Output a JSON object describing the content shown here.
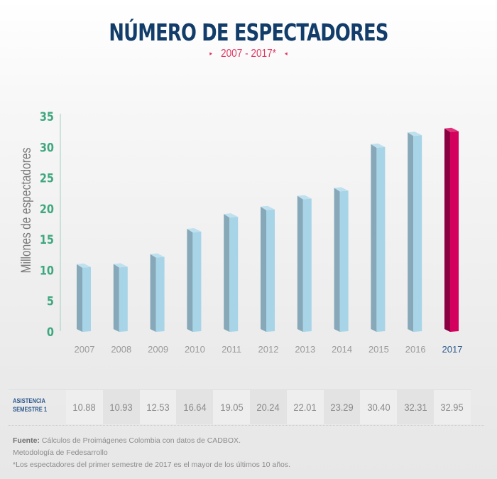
{
  "header": {
    "title": "NÚMERO DE ESPECTADORES",
    "subtitle": "2007 - 2017*",
    "subtitle_left_marker": "▸",
    "subtitle_right_marker": "◂"
  },
  "colors": {
    "title": "#123d6a",
    "subtitle": "#e03764",
    "axis_ticks": "#3fa77e",
    "bar_front": "#a7d4e7",
    "bar_side": "#86a8b8",
    "bar_top": "#bfe0ee",
    "highlight_front": "#d4005d",
    "highlight_side": "#8a0040",
    "highlight_top": "#e0337c",
    "highlight_label": "#2f5a8e"
  },
  "chart_data": {
    "type": "bar",
    "title": "NÚMERO DE ESPECTADORES",
    "subtitle": "2007 - 2017*",
    "xlabel": "",
    "ylabel": "Millones de espectadores",
    "categories": [
      "2007",
      "2008",
      "2009",
      "2010",
      "2011",
      "2012",
      "2013",
      "2014",
      "2015",
      "2016",
      "2017"
    ],
    "values": [
      10.88,
      10.93,
      12.53,
      16.64,
      19.05,
      20.24,
      22.01,
      23.29,
      30.4,
      32.31,
      32.95
    ],
    "highlight_category": "2017",
    "yticks": [
      "0",
      "5",
      "10",
      "15",
      "20",
      "25",
      "30",
      "35"
    ],
    "ylim": [
      0,
      35
    ],
    "grid": false,
    "legend": "none"
  },
  "table": {
    "row_label_line1": "ASISTENCIA",
    "row_label_line2": "SEMESTRE 1",
    "values": [
      "10.88",
      "10.93",
      "12.53",
      "16.64",
      "19.05",
      "20.24",
      "22.01",
      "23.29",
      "30.40",
      "32.31",
      "32.95"
    ]
  },
  "notes": {
    "source_label": "Fuente:",
    "source_text": " Cálculos de Proimágenes Colombia con datos de CADBOX.",
    "methodology": "Metodología de Fedesarrollo",
    "footnote": "*Los espectadores del primer semestre de 2017 es el mayor de los últimos 10 años."
  }
}
